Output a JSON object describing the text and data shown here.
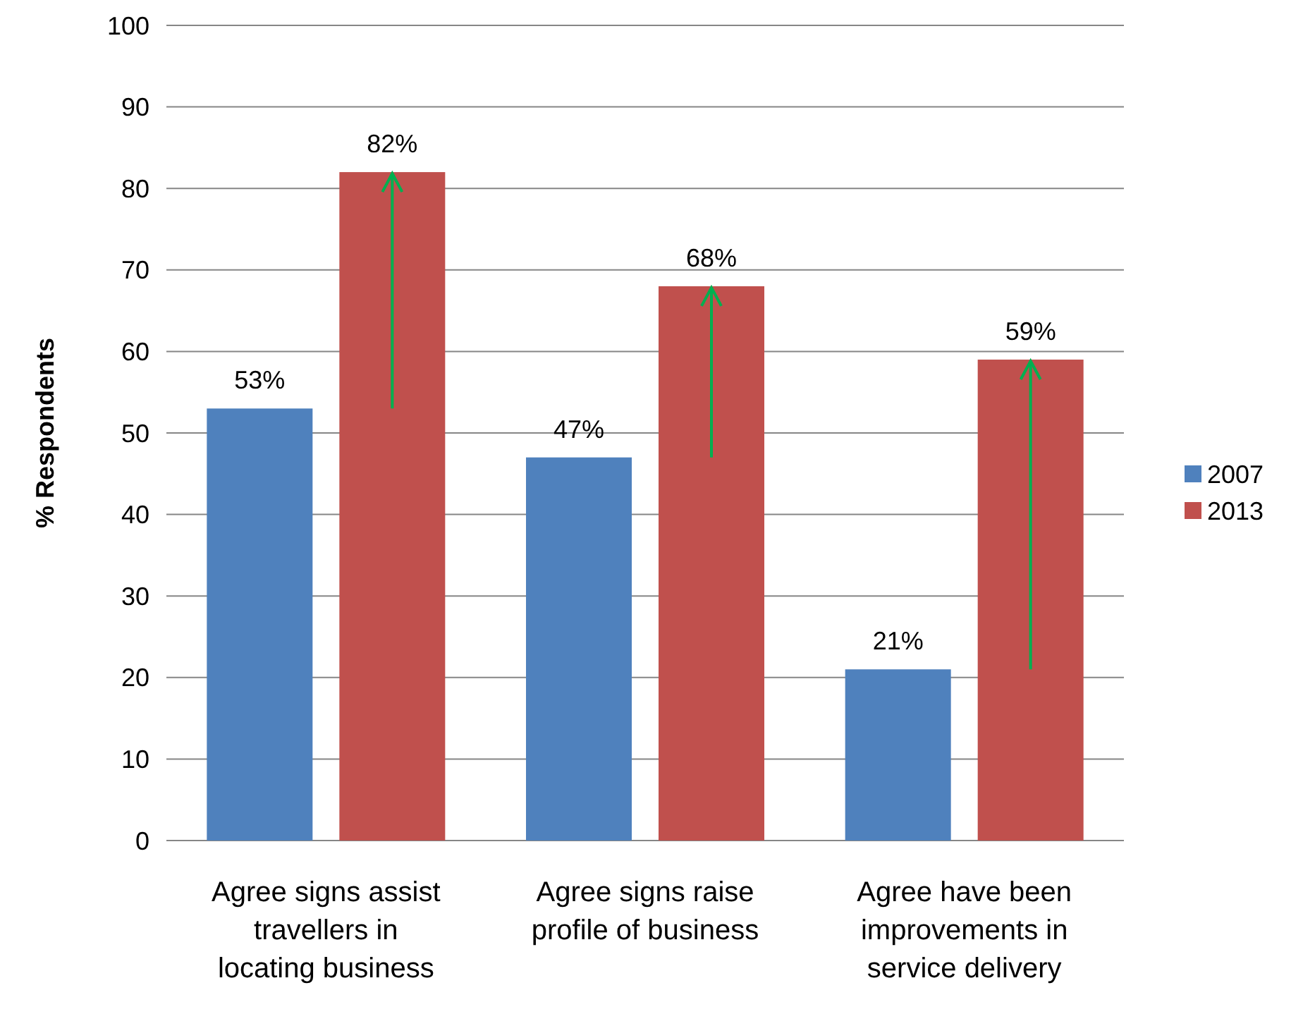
{
  "chart_data": {
    "type": "bar",
    "ylabel": "% Respondents",
    "categories": [
      "Agree signs assist travellers in locating business",
      "Agree signs raise profile of business",
      "Agree have been improvements in service delivery"
    ],
    "series": [
      {
        "name": "2007",
        "color": "#4f81bd",
        "values": [
          53,
          47,
          21
        ],
        "value_labels": [
          "53%",
          "47%",
          "21%"
        ]
      },
      {
        "name": "2013",
        "color": "#c0504d",
        "values": [
          82,
          68,
          59
        ],
        "value_labels": [
          "82%",
          "68%",
          "59%"
        ]
      }
    ],
    "ylim": [
      0,
      100
    ],
    "yticks": [
      0,
      10,
      20,
      30,
      40,
      50,
      60,
      70,
      80,
      90,
      100
    ],
    "grid": "y",
    "legend": "right"
  }
}
